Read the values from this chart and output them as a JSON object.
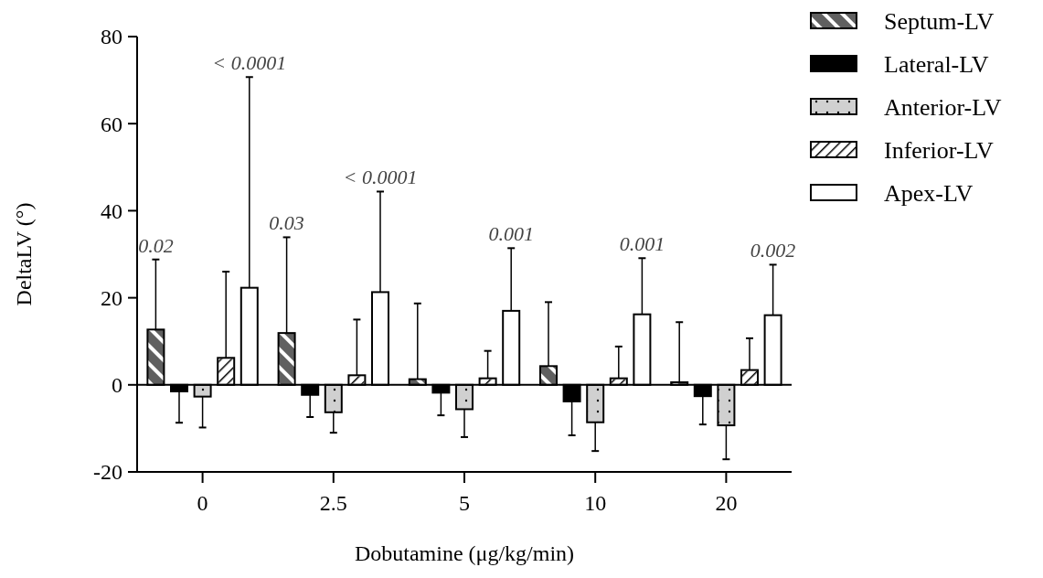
{
  "chart_data": {
    "type": "bar",
    "xlabel": "Dobutamine (μg/kg/min)",
    "ylabel": "DeltaLV (°)",
    "categories": [
      "0",
      "2.5",
      "5",
      "10",
      "20"
    ],
    "series": [
      {
        "name": "Septum-LV",
        "color": "#606060",
        "values": [
          12.7,
          11.9,
          1.3,
          4.3,
          0.6
        ],
        "errors": [
          [
            12.7,
            28.8
          ],
          [
            11.9,
            33.9
          ],
          [
            1.3,
            18.7
          ],
          [
            4.3,
            19.0
          ],
          [
            0.6,
            14.4
          ]
        ]
      },
      {
        "name": "Lateral-LV",
        "color": "#000000",
        "values": [
          -1.5,
          -2.3,
          -1.8,
          -3.8,
          -2.6
        ],
        "errors": [
          [
            -8.7,
            -1.5
          ],
          [
            -7.4,
            -2.3
          ],
          [
            -7.0,
            -1.8
          ],
          [
            -11.6,
            -3.8
          ],
          [
            -9.1,
            -2.6
          ]
        ]
      },
      {
        "name": "Anterior-LV",
        "color": "#d0d0d0",
        "values": [
          -2.7,
          -6.3,
          -5.6,
          -8.6,
          -9.3
        ],
        "errors": [
          [
            -9.8,
            -2.7
          ],
          [
            -11.0,
            -6.3
          ],
          [
            -12.0,
            -5.6
          ],
          [
            -15.2,
            -8.6
          ],
          [
            -17.1,
            -9.3
          ]
        ]
      },
      {
        "name": "Inferior-LV",
        "color": "#ffffff",
        "values": [
          6.2,
          2.2,
          1.5,
          1.5,
          3.4
        ],
        "errors": [
          [
            6.2,
            26.0
          ],
          [
            2.2,
            15.0
          ],
          [
            1.5,
            7.8
          ],
          [
            1.5,
            8.8
          ],
          [
            3.4,
            10.7
          ]
        ]
      },
      {
        "name": "Apex-LV",
        "color": "#ffffff",
        "values": [
          22.3,
          21.3,
          17.0,
          16.2,
          16.0
        ],
        "errors": [
          [
            22.3,
            70.7
          ],
          [
            21.3,
            44.4
          ],
          [
            17.0,
            31.4
          ],
          [
            16.2,
            29.1
          ],
          [
            16.0,
            27.6
          ]
        ]
      }
    ],
    "ylim": [
      -20,
      80
    ],
    "yticks": [
      -20,
      0,
      20,
      40,
      60,
      80
    ],
    "grid": false,
    "legend": "top right",
    "annotations": [
      "0.02",
      "< 0.0001",
      "0.03",
      "< 0.0001",
      "0.001",
      "0.001",
      "0.002"
    ],
    "ref_lines": [
      {
        "axis": "y",
        "value": 0
      }
    ]
  }
}
